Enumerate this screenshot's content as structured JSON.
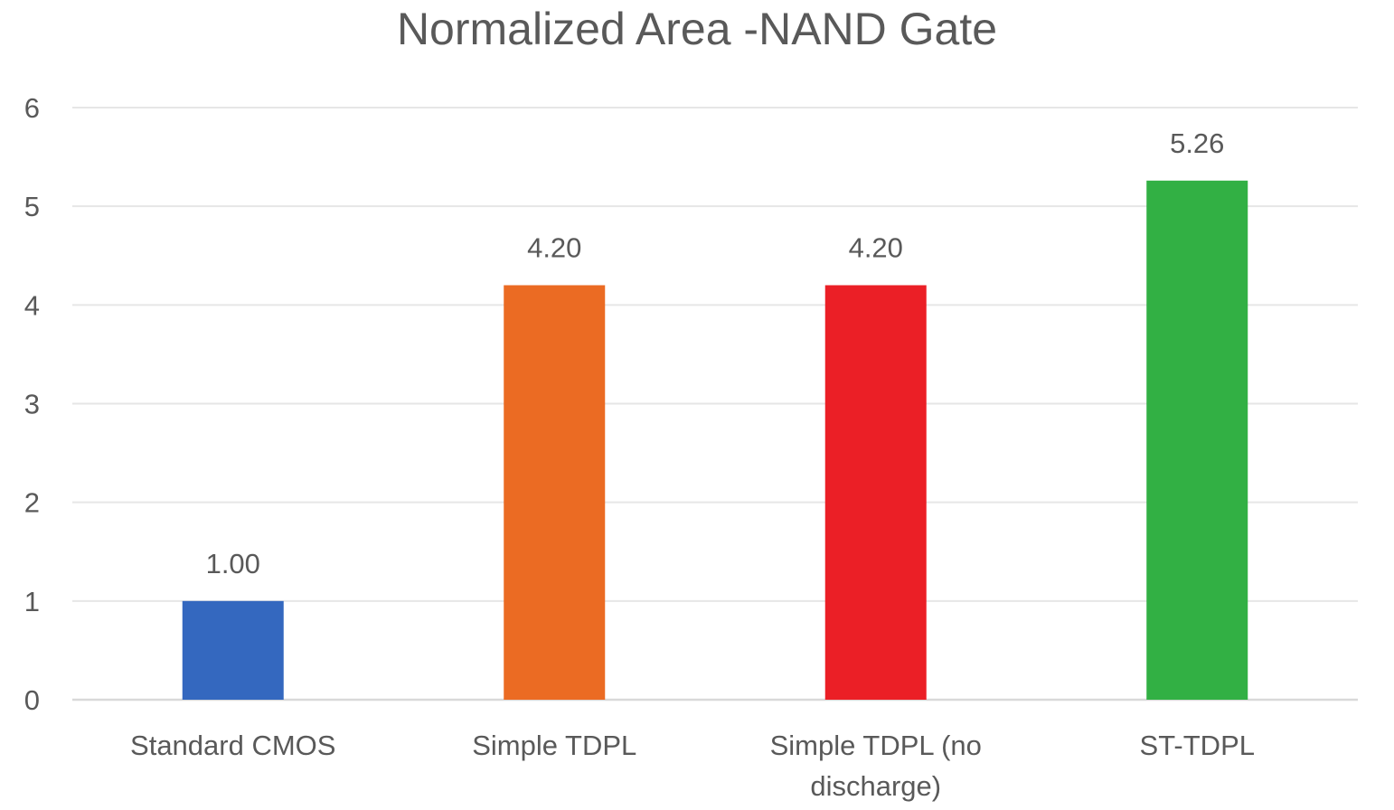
{
  "chart_data": {
    "type": "bar",
    "title": "Normalized Area -NAND Gate",
    "xlabel": "",
    "ylabel": "",
    "categories": [
      "Standard CMOS",
      "Simple TDPL",
      "Simple TDPL (no discharge)",
      "ST-TDPL"
    ],
    "category_lines": [
      [
        "Standard CMOS"
      ],
      [
        "Simple TDPL"
      ],
      [
        "Simple TDPL (no",
        "discharge)"
      ],
      [
        "ST-TDPL"
      ]
    ],
    "values": [
      1.0,
      4.2,
      4.2,
      5.26
    ],
    "data_labels": [
      "1.00",
      "4.20",
      "4.20",
      "5.26"
    ],
    "colors": [
      "#3468bf",
      "#eb6b23",
      "#eb1f26",
      "#32b044"
    ],
    "ylim": [
      0,
      6
    ],
    "yticks": [
      0,
      1,
      2,
      3,
      4,
      5,
      6
    ],
    "grid": true,
    "legend": "none"
  }
}
